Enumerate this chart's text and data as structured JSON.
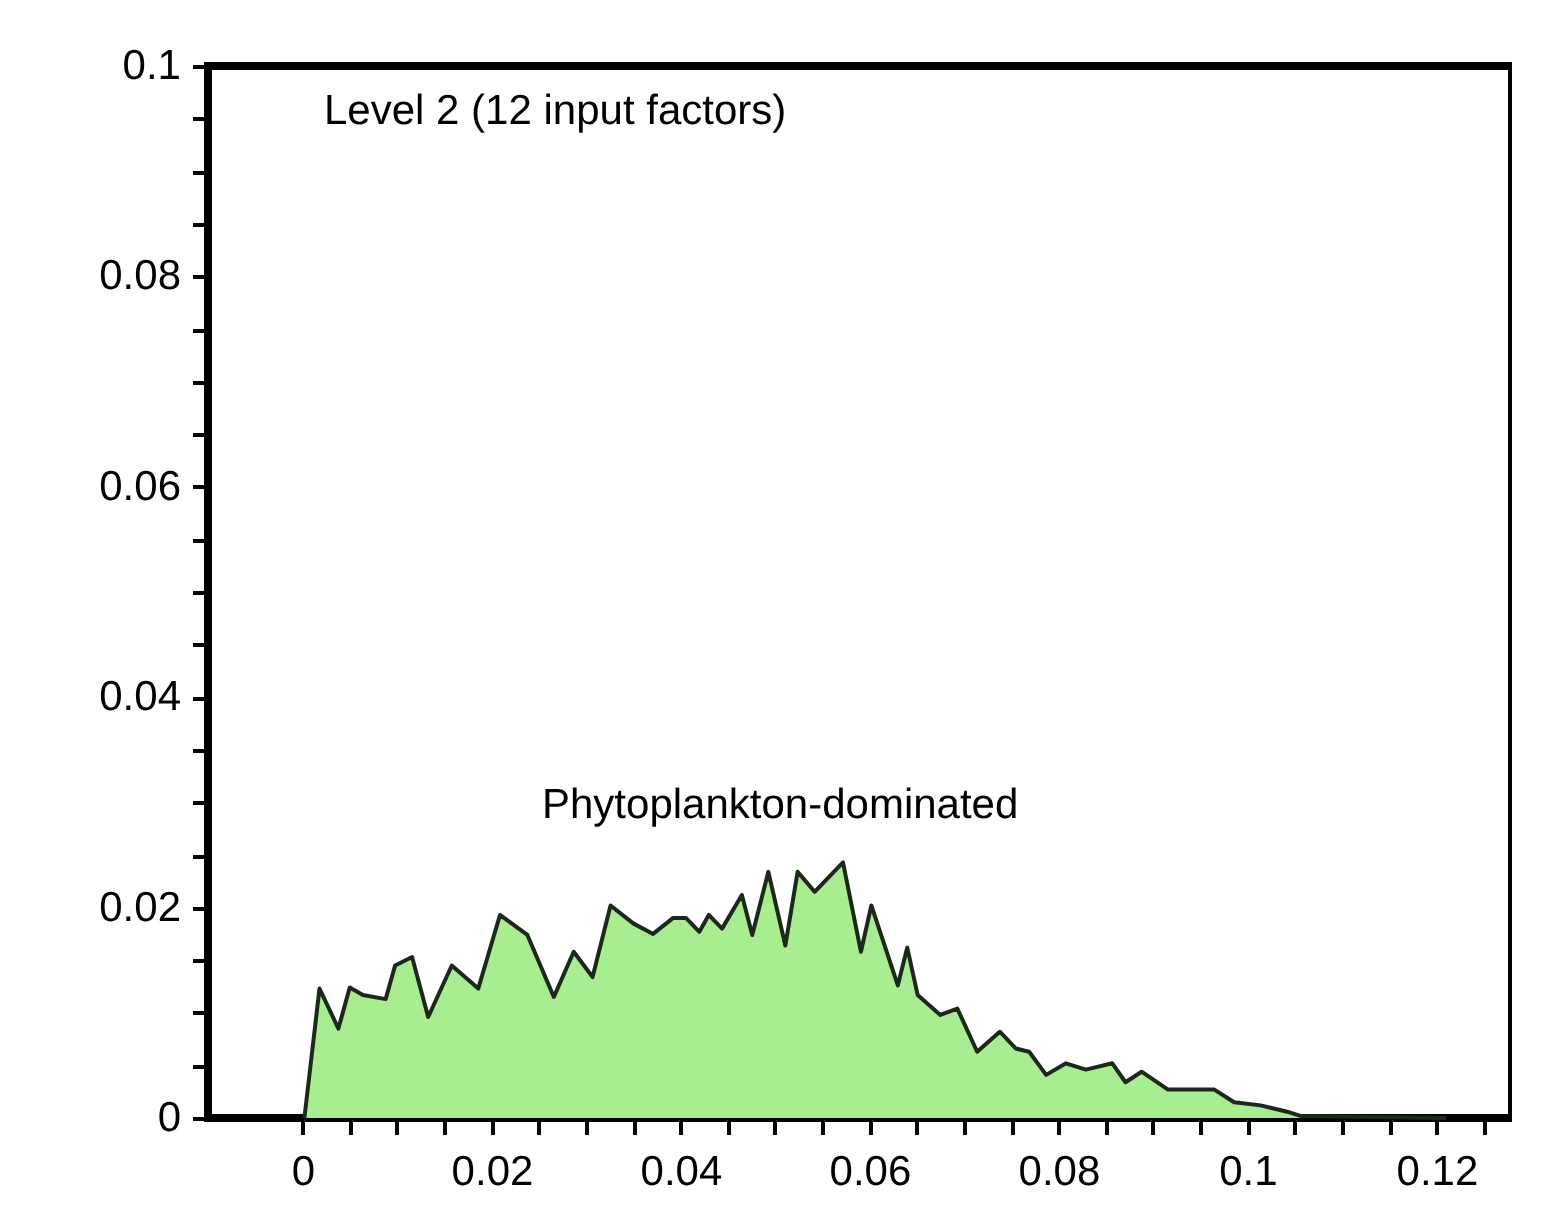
{
  "chart_data": {
    "type": "area",
    "annotations": [
      "Level 2 (12 input factors)",
      "Phytoplankton-dominated"
    ],
    "x": [
      0.0002,
      0.0018,
      0.0038,
      0.005,
      0.0064,
      0.0088,
      0.0098,
      0.0116,
      0.0133,
      0.0158,
      0.0186,
      0.0209,
      0.0238,
      0.0266,
      0.0287,
      0.0307,
      0.0326,
      0.035,
      0.0371,
      0.0392,
      0.0406,
      0.042,
      0.043,
      0.0444,
      0.0465,
      0.0476,
      0.0493,
      0.0511,
      0.0524,
      0.0542,
      0.0572,
      0.0591,
      0.0602,
      0.063,
      0.064,
      0.0651,
      0.0675,
      0.0693,
      0.0714,
      0.0738,
      0.0755,
      0.0769,
      0.0787,
      0.0808,
      0.0829,
      0.0857,
      0.0871,
      0.0888,
      0.0916,
      0.0965,
      0.0986,
      0.1014,
      0.1042,
      0.1056,
      0.121
    ],
    "series": [
      {
        "color": "#a8ee90",
        "values": [
          0,
          0.0123,
          0.0085,
          0.0124,
          0.0117,
          0.0113,
          0.0145,
          0.0153,
          0.0096,
          0.0145,
          0.0123,
          0.0193,
          0.0174,
          0.0115,
          0.0158,
          0.0134,
          0.0202,
          0.0185,
          0.0175,
          0.019,
          0.019,
          0.0177,
          0.0193,
          0.018,
          0.0212,
          0.0174,
          0.0234,
          0.0164,
          0.0234,
          0.0215,
          0.0243,
          0.0158,
          0.0202,
          0.0126,
          0.0162,
          0.0117,
          0.0098,
          0.0104,
          0.0063,
          0.0082,
          0.0066,
          0.0063,
          0.0041,
          0.0052,
          0.0046,
          0.0052,
          0.0034,
          0.0044,
          0.0027,
          0.0027,
          0.0015,
          0.0012,
          0.0006,
          0.0002,
          0
        ]
      }
    ],
    "xlim": [
      -0.01,
      0.128
    ],
    "ylim": [
      0,
      0.1
    ],
    "xticks": [
      0,
      {
        "value": 0.005,
        "label": null
      },
      {
        "value": 0.01,
        "label": null
      },
      {
        "value": 0.015,
        "label": null
      },
      0.02,
      {
        "value": 0.025,
        "label": null
      },
      {
        "value": 0.03,
        "label": null
      },
      {
        "value": 0.035,
        "label": null
      },
      0.04,
      {
        "value": 0.045,
        "label": null
      },
      {
        "value": 0.05,
        "label": null
      },
      {
        "value": 0.055,
        "label": null
      },
      0.06,
      {
        "value": 0.065,
        "label": null
      },
      {
        "value": 0.07,
        "label": null
      },
      {
        "value": 0.075,
        "label": null
      },
      0.08,
      {
        "value": 0.085,
        "label": null
      },
      {
        "value": 0.09,
        "label": null
      },
      {
        "value": 0.095,
        "label": null
      },
      0.1,
      {
        "value": 0.105,
        "label": null
      },
      {
        "value": 0.11,
        "label": null
      },
      {
        "value": 0.115,
        "label": null
      },
      0.12,
      {
        "value": 0.125,
        "label": null
      }
    ],
    "yticks": [
      0,
      {
        "value": 0.005,
        "label": null
      },
      {
        "value": 0.01,
        "label": null
      },
      {
        "value": 0.015,
        "label": null
      },
      0.02,
      {
        "value": 0.025,
        "label": null
      },
      {
        "value": 0.03,
        "label": null
      },
      {
        "value": 0.035,
        "label": null
      },
      0.04,
      {
        "value": 0.045,
        "label": null
      },
      {
        "value": 0.05,
        "label": null
      },
      {
        "value": 0.055,
        "label": null
      },
      0.06,
      {
        "value": 0.065,
        "label": null
      },
      {
        "value": 0.07,
        "label": null
      },
      {
        "value": 0.075,
        "label": null
      },
      0.08,
      {
        "value": 0.085,
        "label": null
      },
      {
        "value": 0.09,
        "label": null
      },
      {
        "value": 0.095,
        "label": null
      },
      0.1
    ],
    "grid": false
  }
}
